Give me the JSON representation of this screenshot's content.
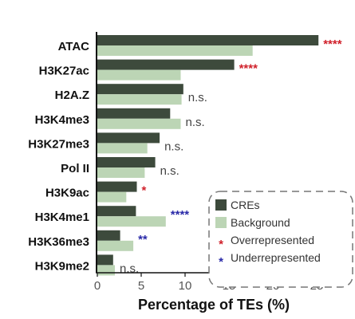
{
  "chart_data": {
    "type": "bar",
    "orientation": "horizontal",
    "categories": [
      "ATAC",
      "H3K27ac",
      "H2A.Z",
      "H3K4me3",
      "H3K27me3",
      "Pol II",
      "H3K9ac",
      "H3K4me1",
      "H3K36me3",
      "H3K9me2"
    ],
    "series": [
      {
        "name": "CREs",
        "color": "#3d4a3c",
        "values": [
          25.2,
          15.6,
          9.8,
          8.3,
          7.1,
          6.6,
          4.5,
          4.4,
          2.6,
          1.8
        ]
      },
      {
        "name": "Background",
        "color": "#bcd5b5",
        "values": [
          17.7,
          9.5,
          9.6,
          9.5,
          5.7,
          5.4,
          3.3,
          7.8,
          4.1,
          2.0
        ]
      }
    ],
    "significance": [
      "****",
      "****",
      "n.s.",
      "n.s.",
      "n.s.",
      "n.s.",
      "*",
      "****",
      "**",
      "n.s."
    ],
    "significance_type": [
      "over",
      "over",
      "ns",
      "ns",
      "ns",
      "ns",
      "over",
      "under",
      "under",
      "ns"
    ],
    "significance_colors": {
      "over": "#d0202a",
      "under": "#2a2aa8",
      "ns": "#444444"
    },
    "xlabel": "Percentage of TEs (%)",
    "xlim": [
      0,
      26
    ],
    "xticks": [
      0,
      5,
      10,
      15,
      20,
      25
    ],
    "legend": {
      "placement": "bottom-right",
      "items": [
        {
          "label": "CREs",
          "symbol": "square",
          "color": "#3d4a3c"
        },
        {
          "label": "Background",
          "symbol": "square",
          "color": "#bcd5b5"
        },
        {
          "label": "Overrepresented",
          "symbol": "*",
          "color": "#d0202a"
        },
        {
          "label": "Underrepresented",
          "symbol": "*",
          "color": "#2a2aa8"
        }
      ]
    }
  }
}
